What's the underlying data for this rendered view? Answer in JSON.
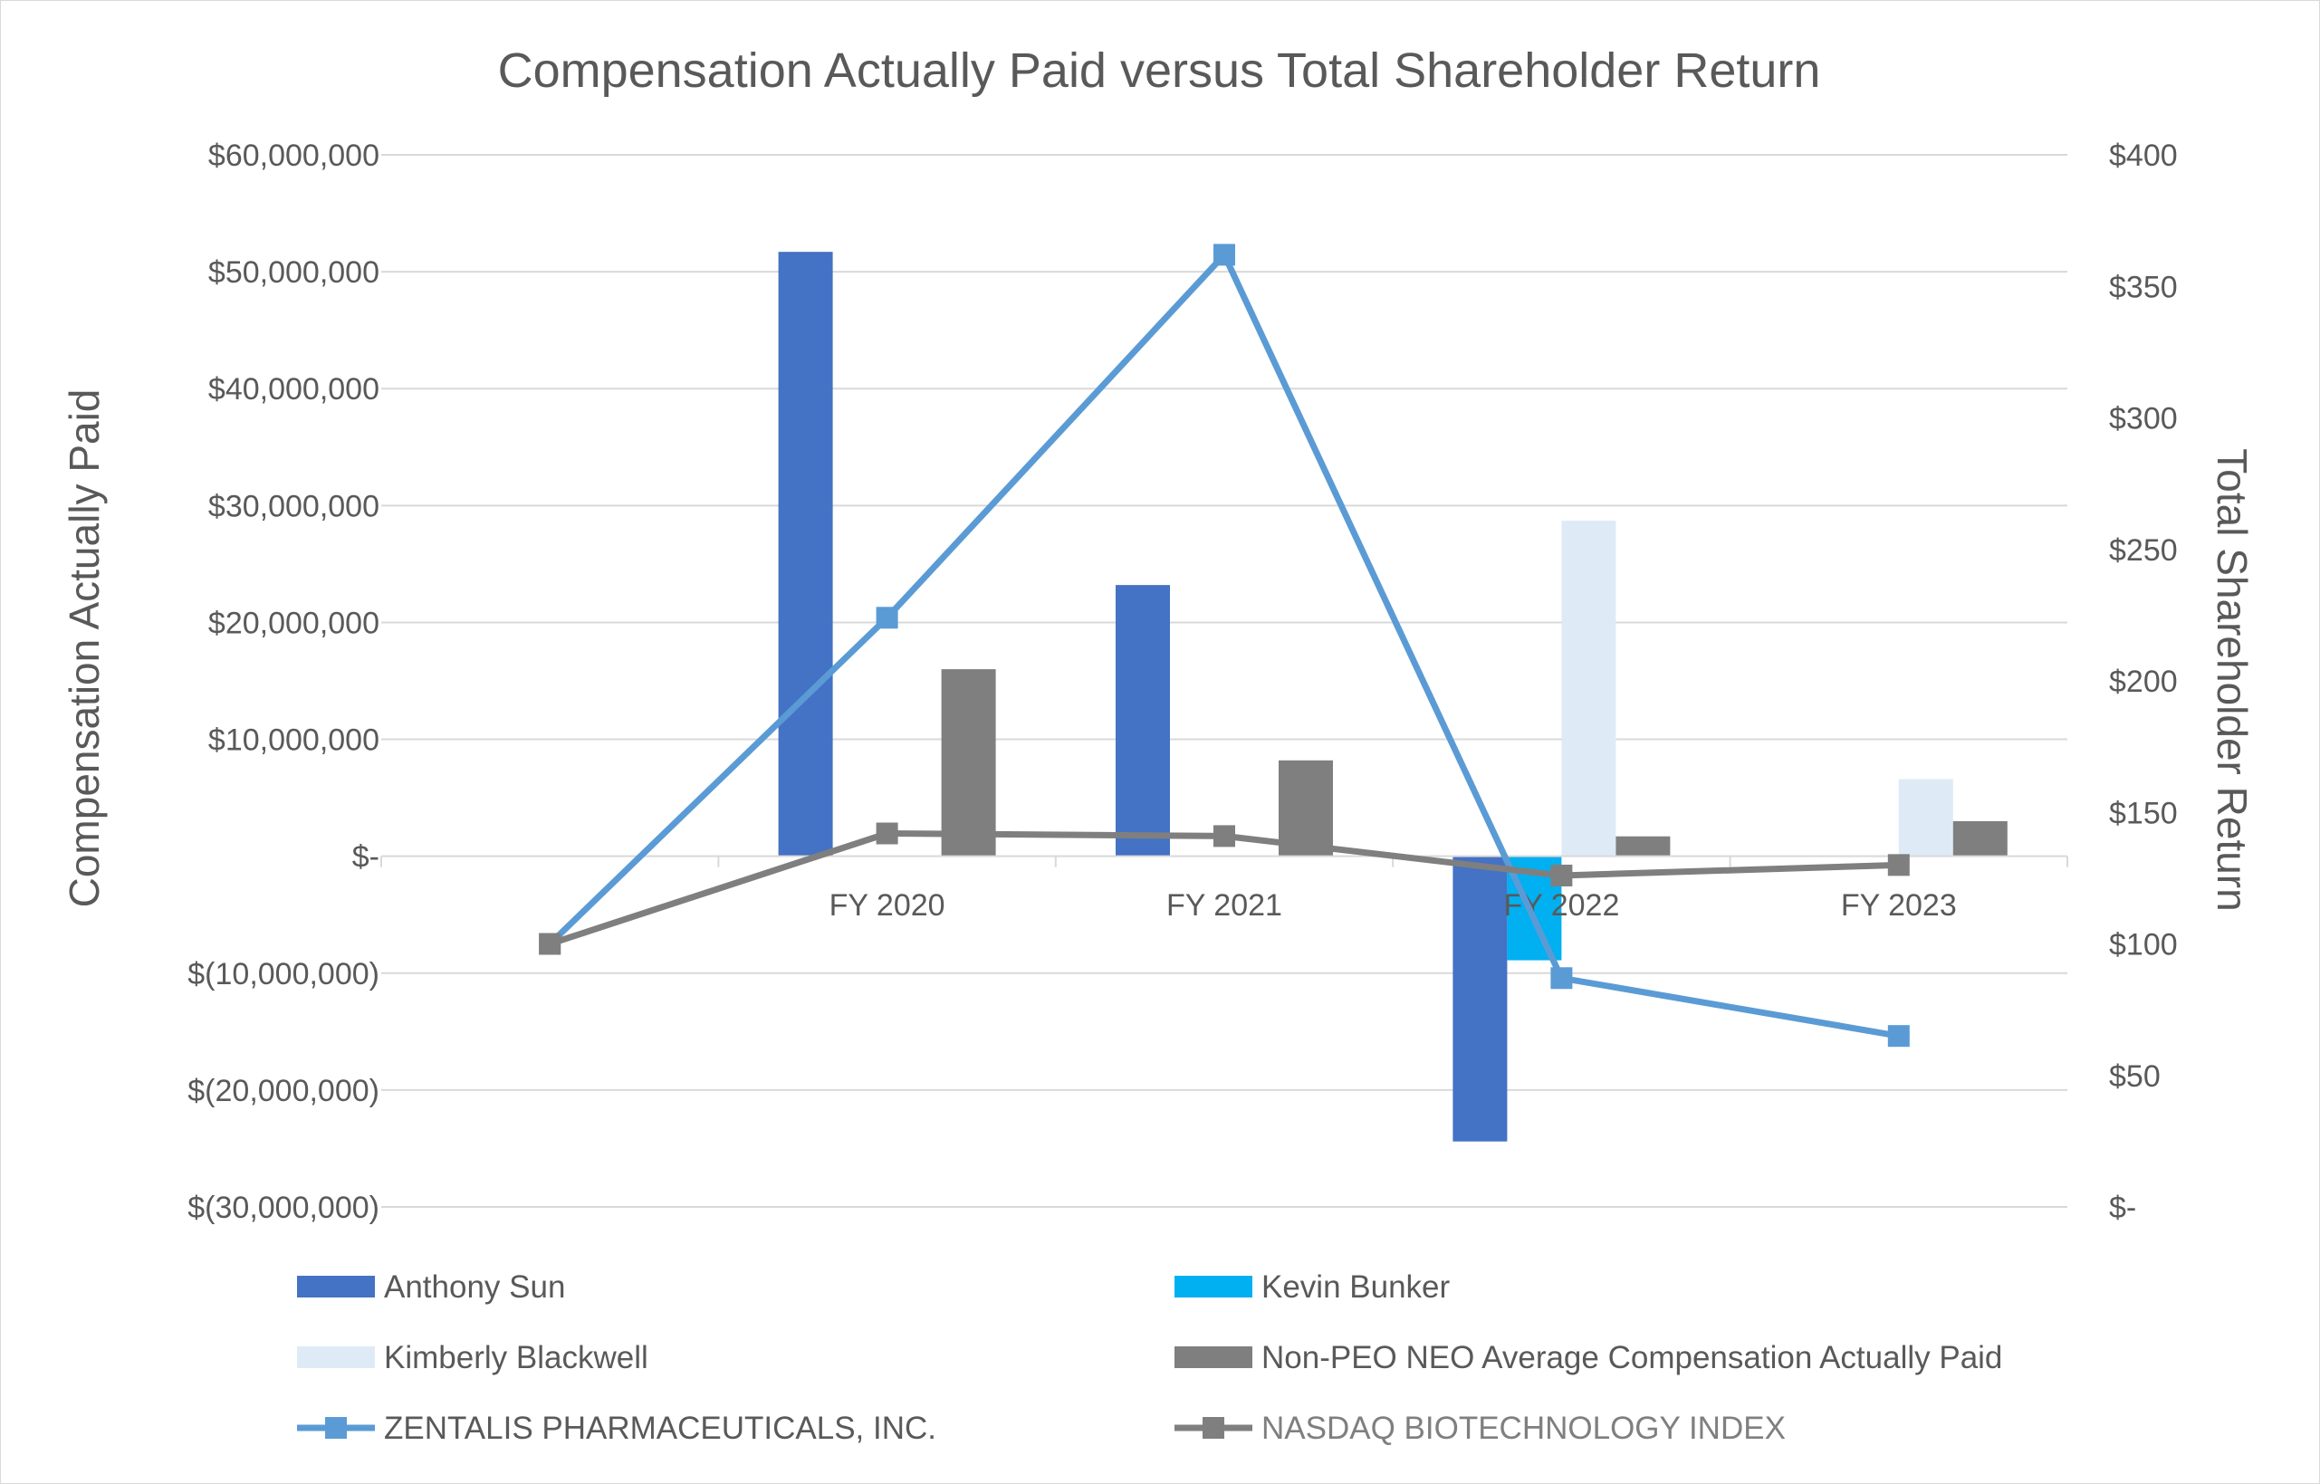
{
  "chart_data": {
    "type": "bar",
    "title": "Compensation Actually Paid versus Total Shareholder Return",
    "ylabel_left": "Compensation Actually Paid",
    "ylabel_right": "Total Shareholder Return",
    "categories": [
      "",
      "FY 2020",
      "FY 2021",
      "FY 2022",
      "FY 2023"
    ],
    "ylim_left": [
      -30000000,
      60000000
    ],
    "ylim_right": [
      0,
      400
    ],
    "left_ticks": [
      {
        "value": 60000000,
        "label": "$60,000,000"
      },
      {
        "value": 50000000,
        "label": "$50,000,000"
      },
      {
        "value": 40000000,
        "label": "$40,000,000"
      },
      {
        "value": 30000000,
        "label": "$30,000,000"
      },
      {
        "value": 20000000,
        "label": "$20,000,000"
      },
      {
        "value": 10000000,
        "label": "$10,000,000"
      },
      {
        "value": 0,
        "label": "$-"
      },
      {
        "value": -10000000,
        "label": "$(10,000,000)"
      },
      {
        "value": -20000000,
        "label": "$(20,000,000)"
      },
      {
        "value": -30000000,
        "label": "$(30,000,000)"
      }
    ],
    "right_ticks": [
      {
        "value": 400,
        "label": "$400"
      },
      {
        "value": 350,
        "label": "$350"
      },
      {
        "value": 300,
        "label": "$300"
      },
      {
        "value": 250,
        "label": "$250"
      },
      {
        "value": 200,
        "label": "$200"
      },
      {
        "value": 150,
        "label": "$150"
      },
      {
        "value": 100,
        "label": "$100"
      },
      {
        "value": 50,
        "label": "$50"
      },
      {
        "value": 0,
        "label": "$-"
      }
    ],
    "bar_series": [
      {
        "name": "Anthony Sun",
        "color": "#4472c4",
        "values": [
          null,
          51700000,
          23200000,
          -24400000,
          null
        ]
      },
      {
        "name": "Kevin Bunker",
        "color": "#00b0f0",
        "values": [
          null,
          null,
          null,
          -8900000,
          null
        ]
      },
      {
        "name": "Kimberly Blackwell",
        "color": "#deebf7",
        "values": [
          null,
          null,
          null,
          28700000,
          6600000
        ]
      },
      {
        "name": "Non-PEO NEO Average Compensation Actually Paid",
        "color": "#7f7f7f",
        "values": [
          null,
          16000000,
          8200000,
          1700000,
          3000000
        ]
      }
    ],
    "line_series": [
      {
        "name": "ZENTALIS PHARMACEUTICALS, INC.",
        "color": "#5b9bd5",
        "values": [
          100,
          224,
          362,
          87,
          65
        ]
      },
      {
        "name": "NASDAQ BIOTECHNOLOGY INDEX",
        "color": "#7f7f7f",
        "values": [
          100,
          142,
          141,
          126,
          130
        ]
      }
    ]
  }
}
